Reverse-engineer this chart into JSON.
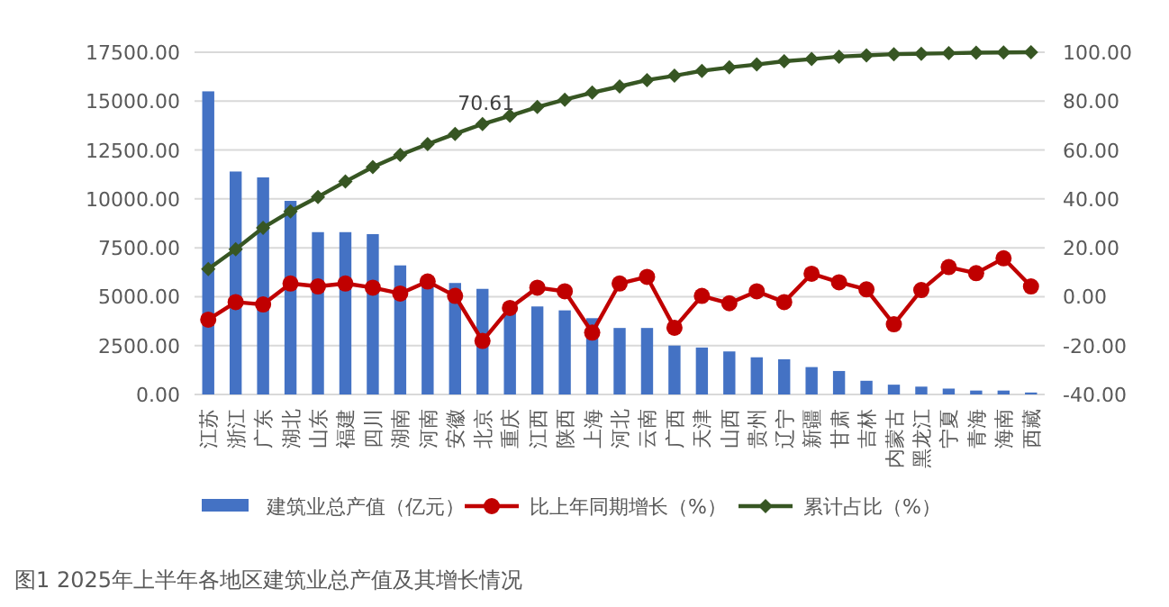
{
  "chart_data": {
    "type": "bar",
    "title": "图1 2025年上半年各地区建筑业总产值及其增长情况",
    "categories": [
      "江苏",
      "浙江",
      "广东",
      "湖北",
      "山东",
      "福建",
      "四川",
      "湖南",
      "河南",
      "安徽",
      "北京",
      "重庆",
      "江西",
      "陕西",
      "上海",
      "河北",
      "云南",
      "广西",
      "天津",
      "山西",
      "贵州",
      "辽宁",
      "新疆",
      "甘肃",
      "吉林",
      "内蒙古",
      "黑龙江",
      "宁夏",
      "青海",
      "海南",
      "西藏"
    ],
    "series": [
      {
        "name": "建筑业总产值（亿元）",
        "color": "#4472c4",
        "values": [
          15500,
          11400,
          11100,
          9900,
          8300,
          8300,
          8200,
          6600,
          5700,
          5700,
          5400,
          4400,
          4500,
          4300,
          3900,
          3400,
          3400,
          2500,
          2400,
          2200,
          1900,
          1800,
          1400,
          1200,
          700,
          500,
          400,
          300,
          200,
          200,
          100
        ]
      },
      {
        "name": "比上年同期增长（%）",
        "type": "line",
        "axis": "y2",
        "marker": "circle",
        "color": "#c00000",
        "values": [
          -9.4,
          -2.2,
          -3.2,
          5.4,
          4.2,
          5.4,
          3.7,
          1.3,
          6.2,
          0.3,
          -18.1,
          -4.6,
          3.7,
          2.2,
          -14.7,
          5.4,
          8.1,
          -12.7,
          0.3,
          -2.7,
          2.2,
          -2.2,
          9.4,
          5.9,
          3.0,
          -11.3,
          2.7,
          12.1,
          9.6,
          15.7,
          4.2
        ]
      },
      {
        "name": "累计占比（%）",
        "type": "line",
        "axis": "y2",
        "marker": "diamond",
        "color": "#375623",
        "values": [
          11.3,
          19.4,
          28.2,
          34.9,
          40.8,
          47.1,
          53.0,
          58.0,
          62.4,
          66.6,
          70.61,
          74.0,
          77.6,
          80.6,
          83.5,
          86.0,
          88.6,
          90.4,
          92.4,
          93.8,
          95.0,
          96.3,
          97.2,
          98.2,
          98.7,
          99.2,
          99.4,
          99.6,
          99.8,
          99.9,
          100.0
        ],
        "value_labels": [
          null,
          null,
          null,
          null,
          null,
          null,
          null,
          null,
          null,
          null,
          "70.61",
          null,
          null,
          null,
          null,
          null,
          null,
          null,
          null,
          null,
          null,
          null,
          null,
          null,
          null,
          null,
          null,
          null,
          null,
          null,
          null
        ]
      }
    ],
    "ylim": [
      0,
      17500
    ],
    "yticks": [
      {
        "value": 0,
        "label": "0.00"
      },
      {
        "value": 2500,
        "label": "2500.00"
      },
      {
        "value": 5000,
        "label": "5000.00"
      },
      {
        "value": 7500,
        "label": "7500.00"
      },
      {
        "value": 10000,
        "label": "10000.00"
      },
      {
        "value": 12500,
        "label": "12500.00"
      },
      {
        "value": 15000,
        "label": "15000.00"
      },
      {
        "value": 17500,
        "label": "17500.00"
      }
    ],
    "y2lim": [
      -40,
      100
    ],
    "y2ticks": [
      {
        "value": -40,
        "label": "-40.00"
      },
      {
        "value": -20,
        "label": "-20.00"
      },
      {
        "value": 0,
        "label": "0.00"
      },
      {
        "value": 20,
        "label": "20.00"
      },
      {
        "value": 40,
        "label": "40.00"
      },
      {
        "value": 60,
        "label": "60.00"
      },
      {
        "value": 80,
        "label": "80.00"
      },
      {
        "value": 100,
        "label": "100.00"
      }
    ],
    "grid": "y",
    "legend": "bottom"
  }
}
